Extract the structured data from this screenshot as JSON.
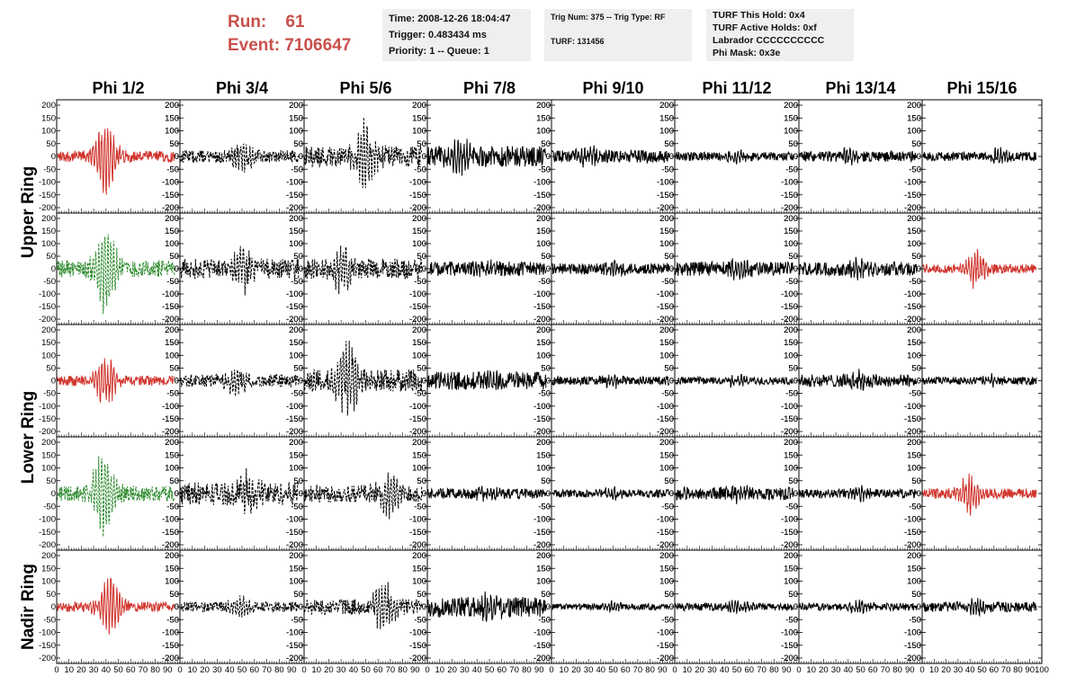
{
  "header": {
    "run_label": "Run:",
    "run_value": "61",
    "event_label": "Event:",
    "event_value": "7106647"
  },
  "info_boxes": {
    "time": "Time: 2008-12-26 18:04:47",
    "trigger": "Trigger: 0.483434 ms",
    "priority": "Priority: 1 -- Queue: 1",
    "trig_num": "Trig Num: 375 -- Trig Type: RF",
    "turf": "TURF: 131456",
    "turf_hold": "TURF This Hold: 0x4",
    "turf_active": "TURF Active Holds: 0xf",
    "labrador": "Labrador CCCCCCCCCC",
    "phi_mask": "Phi Mask: 0x3e"
  },
  "chart_data": {
    "type": "line",
    "columns": [
      "Phi 1/2",
      "Phi 3/4",
      "Phi 5/6",
      "Phi 7/8",
      "Phi 9/10",
      "Phi 11/12",
      "Phi 13/14",
      "Phi 15/16"
    ],
    "row_groups": [
      {
        "label": "Upper Ring",
        "rows": [
          0,
          1
        ]
      },
      {
        "label": "Lower Ring",
        "rows": [
          2,
          3
        ]
      },
      {
        "label": "Nadir Ring",
        "rows": [
          4
        ]
      }
    ],
    "xlim": [
      0,
      100
    ],
    "ylim": [
      -200,
      200
    ],
    "x_ticks": [
      0,
      10,
      20,
      30,
      40,
      50,
      60,
      70,
      80,
      90,
      100
    ],
    "y_ticks": [
      -200,
      -150,
      -100,
      -50,
      0,
      50,
      100,
      150,
      200
    ],
    "colors": {
      "red": "#d0342c",
      "green": "#2e8b2e",
      "black": "#000000"
    },
    "panels": [
      [
        {
          "style": "red",
          "peak": 40,
          "amp": 160,
          "noise": 22
        },
        {
          "style": "black-dashed",
          "peak": 50,
          "amp": 55,
          "noise": 25
        },
        {
          "style": "black-dashed",
          "peak": 50,
          "amp": 150,
          "noise": 40
        },
        {
          "style": "black",
          "peak": 25,
          "amp": 60,
          "noise": 40
        },
        {
          "style": "black",
          "peak": 30,
          "amp": 30,
          "noise": 25
        },
        {
          "style": "black",
          "peak": 50,
          "amp": 20,
          "noise": 17
        },
        {
          "style": "black",
          "peak": 40,
          "amp": 25,
          "noise": 20
        },
        {
          "style": "black",
          "peak": 65,
          "amp": 30,
          "noise": 17
        }
      ],
      [
        {
          "style": "green-dashed",
          "peak": 40,
          "amp": 190,
          "noise": 35
        },
        {
          "style": "black-dashed",
          "peak": 50,
          "amp": 90,
          "noise": 40
        },
        {
          "style": "black-dashed",
          "peak": 30,
          "amp": 90,
          "noise": 40
        },
        {
          "style": "black",
          "peak": 50,
          "amp": 30,
          "noise": 28
        },
        {
          "style": "black",
          "peak": 50,
          "amp": 25,
          "noise": 22
        },
        {
          "style": "black",
          "peak": 50,
          "amp": 35,
          "noise": 28
        },
        {
          "style": "black",
          "peak": 50,
          "amp": 35,
          "noise": 28
        },
        {
          "style": "red",
          "peak": 45,
          "amp": 75,
          "noise": 18
        }
      ],
      [
        {
          "style": "red",
          "peak": 40,
          "amp": 100,
          "noise": 20
        },
        {
          "style": "black-dashed",
          "peak": 45,
          "amp": 60,
          "noise": 25
        },
        {
          "style": "black-dashed",
          "peak": 35,
          "amp": 170,
          "noise": 45
        },
        {
          "style": "black",
          "peak": 50,
          "amp": 35,
          "noise": 35
        },
        {
          "style": "black",
          "peak": 50,
          "amp": 20,
          "noise": 17
        },
        {
          "style": "black",
          "peak": 50,
          "amp": 20,
          "noise": 15
        },
        {
          "style": "black",
          "peak": 50,
          "amp": 30,
          "noise": 25
        },
        {
          "style": "black",
          "peak": 60,
          "amp": 20,
          "noise": 15
        }
      ],
      [
        {
          "style": "green-dashed",
          "peak": 38,
          "amp": 180,
          "noise": 30
        },
        {
          "style": "black-dashed",
          "peak": 55,
          "amp": 80,
          "noise": 45
        },
        {
          "style": "black-dashed",
          "peak": 70,
          "amp": 100,
          "noise": 35
        },
        {
          "style": "black",
          "peak": 50,
          "amp": 30,
          "noise": 20
        },
        {
          "style": "black",
          "peak": 50,
          "amp": 20,
          "noise": 15
        },
        {
          "style": "black",
          "peak": 50,
          "amp": 30,
          "noise": 25
        },
        {
          "style": "black",
          "peak": 50,
          "amp": 20,
          "noise": 17
        },
        {
          "style": "red",
          "peak": 40,
          "amp": 80,
          "noise": 20
        }
      ],
      [
        {
          "style": "red",
          "peak": 43,
          "amp": 130,
          "noise": 20
        },
        {
          "style": "black-dashed",
          "peak": 50,
          "amp": 35,
          "noise": 20
        },
        {
          "style": "black-dashed",
          "peak": 65,
          "amp": 100,
          "noise": 30
        },
        {
          "style": "black",
          "peak": 50,
          "amp": 45,
          "noise": 40
        },
        {
          "style": "black",
          "peak": 50,
          "amp": 17,
          "noise": 12
        },
        {
          "style": "black",
          "peak": 50,
          "amp": 20,
          "noise": 15
        },
        {
          "style": "black",
          "peak": 50,
          "amp": 20,
          "noise": 15
        },
        {
          "style": "black",
          "peak": 45,
          "amp": 40,
          "noise": 20
        }
      ]
    ]
  }
}
